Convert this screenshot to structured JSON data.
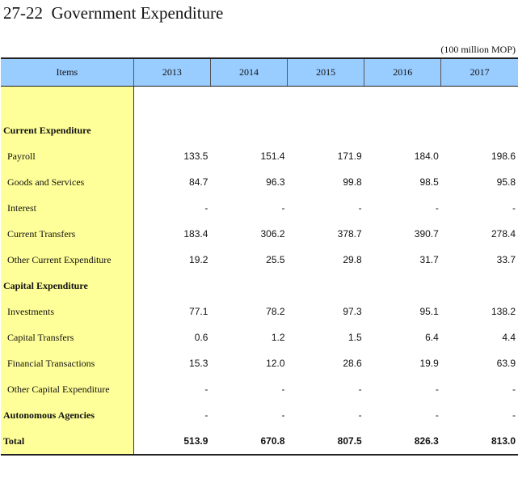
{
  "title": "27-22  Government Expenditure",
  "unit": "(100 million MOP)",
  "columns": [
    "Items",
    "2013",
    "2014",
    "2015",
    "2016",
    "2017"
  ],
  "rows": [
    {
      "label": "Current Expenditure",
      "style": "bold",
      "values": [
        "",
        "",
        "",
        "",
        ""
      ]
    },
    {
      "label": "Payroll",
      "style": "indent",
      "values": [
        "133.5",
        "151.4",
        "171.9",
        "184.0",
        "198.6"
      ]
    },
    {
      "label": "Goods and Services",
      "style": "indent",
      "values": [
        "84.7",
        "96.3",
        "99.8",
        "98.5",
        "95.8"
      ]
    },
    {
      "label": "Interest",
      "style": "indent",
      "values": [
        "-",
        "-",
        "-",
        "-",
        "-"
      ]
    },
    {
      "label": "Current Transfers",
      "style": "indent",
      "values": [
        "183.4",
        "306.2",
        "378.7",
        "390.7",
        "278.4"
      ]
    },
    {
      "label": "Other Current Expenditure",
      "style": "indent",
      "values": [
        "19.2",
        "25.5",
        "29.8",
        "31.7",
        "33.7"
      ]
    },
    {
      "label": "Capital Expenditure",
      "style": "bold",
      "values": [
        "",
        "",
        "",
        "",
        ""
      ]
    },
    {
      "label": "Investments",
      "style": "indent",
      "values": [
        "77.1",
        "78.2",
        "97.3",
        "95.1",
        "138.2"
      ]
    },
    {
      "label": "Capital Transfers",
      "style": "indent",
      "values": [
        "0.6",
        "1.2",
        "1.5",
        "6.4",
        "4.4"
      ]
    },
    {
      "label": "Financial Transactions",
      "style": "indent",
      "values": [
        "15.3",
        "12.0",
        "28.6",
        "19.9",
        "63.9"
      ]
    },
    {
      "label": "Other Capital Expenditure",
      "style": "indent",
      "values": [
        "-",
        "-",
        "-",
        "-",
        "-"
      ]
    },
    {
      "label": "Autonomous Agencies",
      "style": "bold",
      "values": [
        "-",
        "-",
        "-",
        "-",
        "-"
      ]
    },
    {
      "label": "Total",
      "style": "bold",
      "values": [
        "513.9",
        "670.8",
        "807.5",
        "826.3",
        "813.0"
      ]
    }
  ],
  "colors": {
    "header_bg": "#99ccff",
    "label_bg": "#ffff99"
  }
}
